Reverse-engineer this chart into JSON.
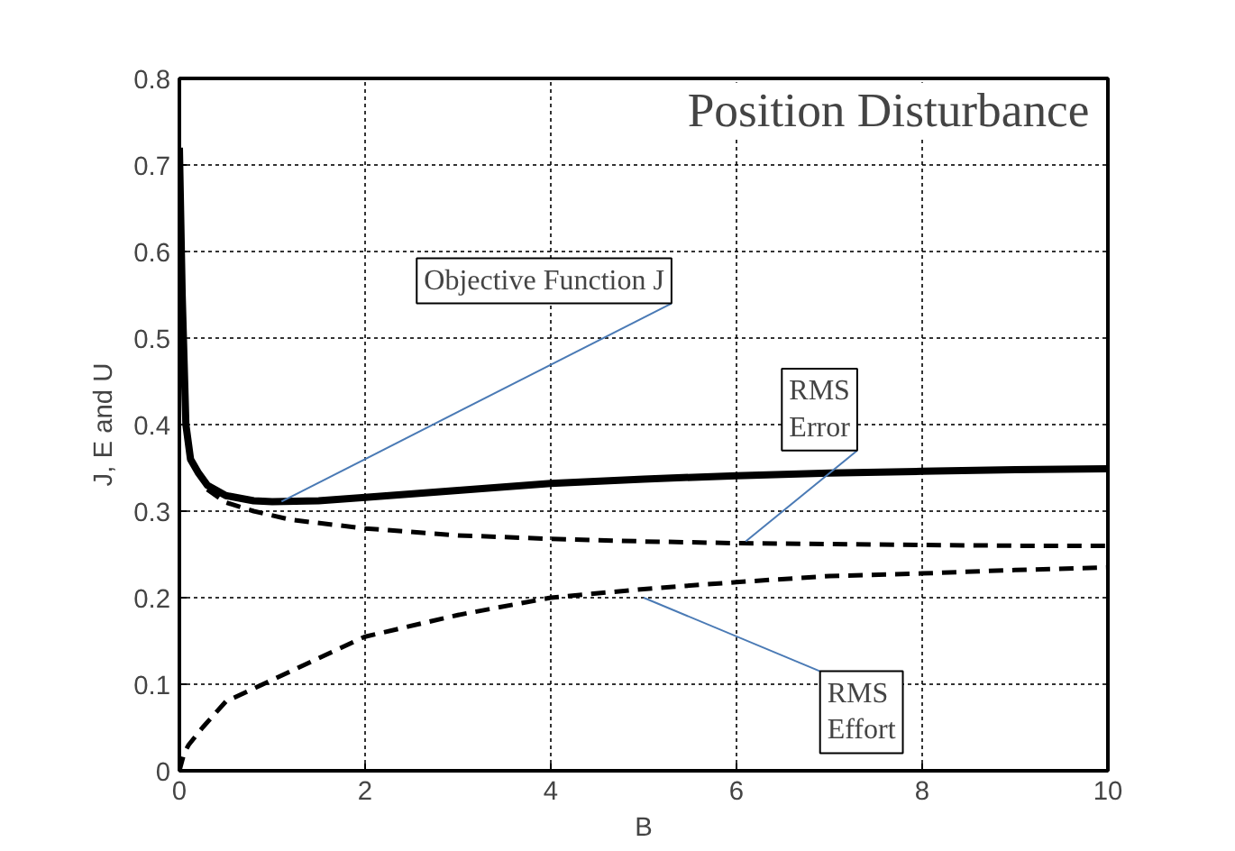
{
  "chart_data": {
    "type": "line",
    "title": "Position Disturbance",
    "xlabel": "B",
    "ylabel": "J, E and U",
    "xlim": [
      0,
      10
    ],
    "ylim": [
      0,
      0.8
    ],
    "xticks": [
      0,
      2,
      4,
      6,
      8,
      10
    ],
    "yticks": [
      0,
      0.1,
      0.2,
      0.3,
      0.4,
      0.5,
      0.6,
      0.7,
      0.8
    ],
    "grid": true,
    "series": [
      {
        "color": "#000000",
        "line_style": "solid",
        "x": [
          0,
          0.03,
          0.07,
          0.12,
          0.2,
          0.3,
          0.5,
          0.8,
          1,
          1.5,
          2,
          3,
          4,
          5,
          6,
          7,
          8,
          9,
          10
        ],
        "values": [
          0.72,
          0.55,
          0.4,
          0.36,
          0.345,
          0.33,
          0.318,
          0.312,
          0.311,
          0.312,
          0.316,
          0.324,
          0.332,
          0.337,
          0.341,
          0.344,
          0.346,
          0.348,
          0.349
        ]
      },
      {
        "color": "#000000",
        "line_style": "dashed",
        "x": [
          0.3,
          0.5,
          0.8,
          1.2,
          2,
          3,
          4,
          5,
          6,
          7,
          8,
          9,
          10
        ],
        "values": [
          0.325,
          0.31,
          0.3,
          0.29,
          0.28,
          0.272,
          0.268,
          0.265,
          0.263,
          0.262,
          0.261,
          0.26,
          0.26
        ]
      },
      {
        "color": "#000000",
        "line_style": "dashed",
        "x": [
          0,
          0.05,
          0.1,
          0.25,
          0.5,
          0.9,
          1.5,
          2,
          3,
          4,
          5,
          6,
          7,
          8,
          9,
          10
        ],
        "values": [
          0,
          0.02,
          0.03,
          0.05,
          0.08,
          0.1,
          0.13,
          0.155,
          0.18,
          0.2,
          0.21,
          0.218,
          0.225,
          0.228,
          0.232,
          0.235
        ]
      }
    ],
    "annotations": [
      {
        "text": "Objective Function J",
        "x": 1.1,
        "y": 0.311
      },
      {
        "text": "RMS\nError",
        "x": 6.1,
        "y": 0.265
      },
      {
        "text": "RMS\nEffort",
        "x": 5.0,
        "y": 0.2
      }
    ]
  }
}
